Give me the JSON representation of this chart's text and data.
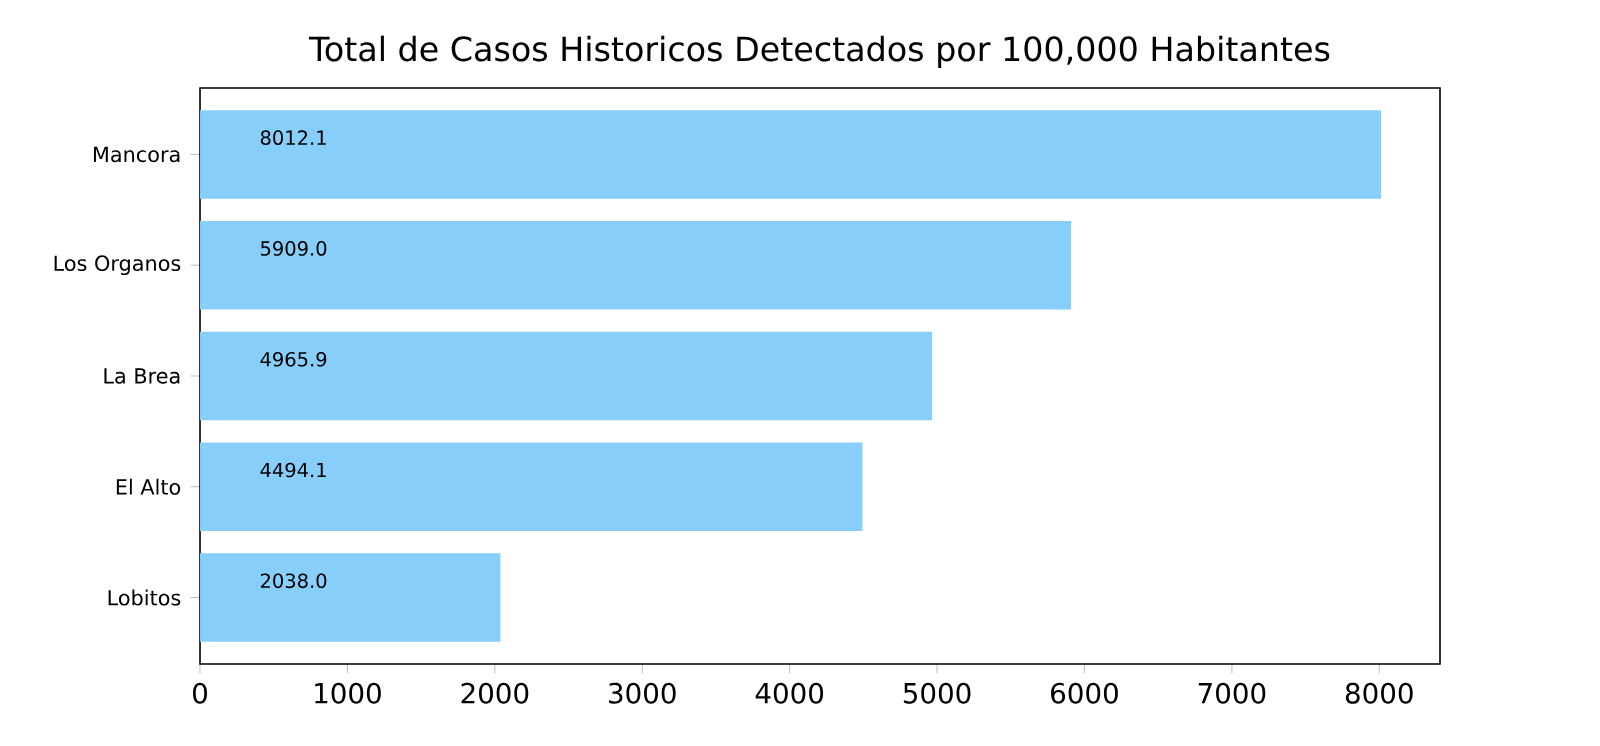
{
  "chart_data": {
    "type": "bar",
    "orientation": "horizontal",
    "title": "Total de Casos Historicos Detectados por 100,000 Habitantes",
    "categories": [
      "Mancora",
      "Los Organos",
      "La Brea",
      "El Alto",
      "Lobitos"
    ],
    "values": [
      8012.1,
      5909.0,
      4965.9,
      4494.1,
      2038.0
    ],
    "value_labels": [
      "8012.1",
      "5909.0",
      "4965.9",
      "4494.1",
      "2038.0"
    ],
    "color": "#87cefa",
    "xlim": [
      0,
      8412
    ],
    "xticks": [
      0,
      1000,
      2000,
      3000,
      4000,
      5000,
      6000,
      7000,
      8000
    ],
    "grid": false
  }
}
